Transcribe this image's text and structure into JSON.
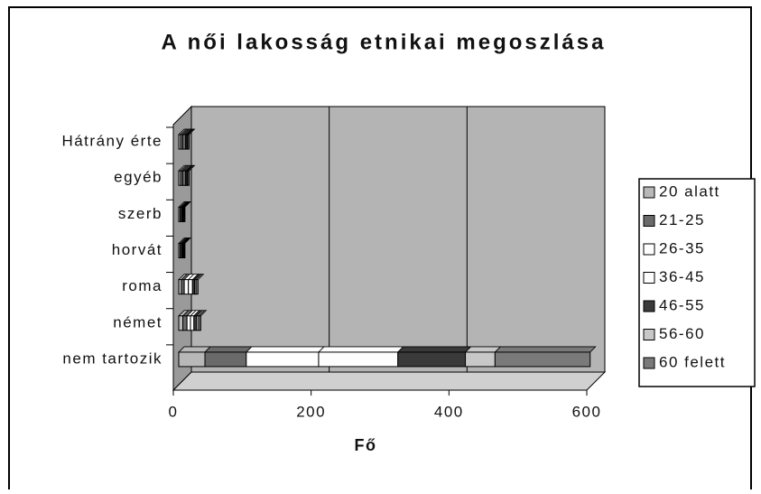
{
  "chart_data": {
    "type": "bar",
    "orientation": "horizontal",
    "stacked": true,
    "title": "A női lakosság etnikai megoszlása",
    "x_label": "Fő",
    "categories": [
      "Hátrány érte",
      "egyéb",
      "szerb",
      "horvát",
      "roma",
      "német",
      "nem tartozik"
    ],
    "series": [
      {
        "name": "20 alatt",
        "color": "#b8b8b8",
        "values": [
          3,
          3,
          2,
          2,
          4,
          6,
          38
        ]
      },
      {
        "name": "21-25",
        "color": "#6a6a6a",
        "values": [
          3,
          3,
          2,
          2,
          4,
          6,
          60
        ]
      },
      {
        "name": "26-35",
        "color": "#ffffff",
        "values": [
          2,
          2,
          1,
          1,
          6,
          5,
          105
        ]
      },
      {
        "name": "36-45",
        "color": "#fdfdfd",
        "values": [
          2,
          2,
          1,
          1,
          6,
          5,
          115
        ]
      },
      {
        "name": "46-55",
        "color": "#3a3a3a",
        "values": [
          2,
          2,
          1,
          1,
          3,
          4,
          98
        ]
      },
      {
        "name": "56-60",
        "color": "#c8c8c8",
        "values": [
          1,
          1,
          1,
          1,
          2,
          3,
          43
        ]
      },
      {
        "name": "60 felett",
        "color": "#7a7a7a",
        "values": [
          2,
          2,
          1,
          1,
          3,
          3,
          138
        ]
      }
    ],
    "xlim": [
      0,
      600
    ],
    "xticks": [
      0,
      200,
      400,
      600
    ],
    "grid": true,
    "legend": "right"
  }
}
